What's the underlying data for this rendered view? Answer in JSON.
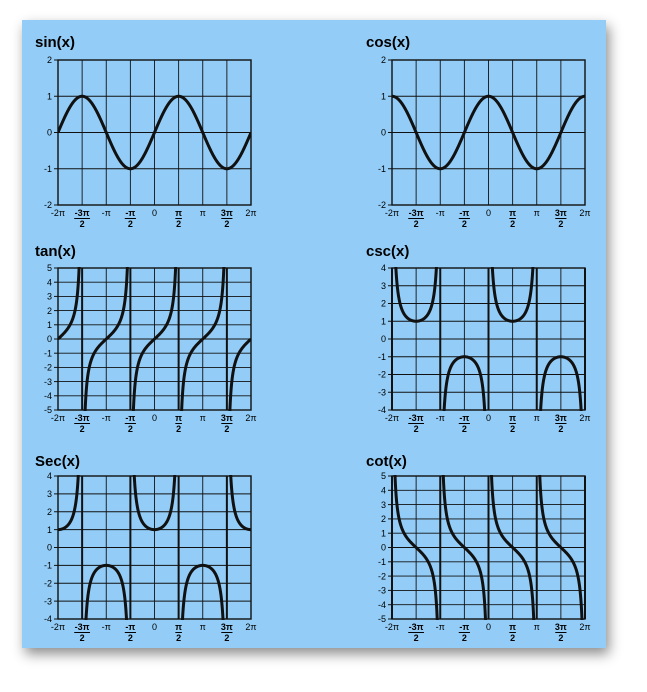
{
  "chart_data": [
    {
      "type": "line",
      "title": "sin(x)",
      "fn": "sin",
      "ylim": [
        -2,
        2
      ],
      "yticks": [
        "2",
        "1",
        "0",
        "-1",
        "-2"
      ],
      "ystep": 1,
      "xlim": [
        "-2π",
        "2π"
      ],
      "xticks": [
        "-2π",
        "-3π/2",
        "-π",
        "-π/2",
        "0",
        "π/2",
        "π",
        "3π/2",
        "2π"
      ],
      "series": [
        {
          "values": "y = sin(x), x ∈ [-2π, 2π]"
        }
      ],
      "grid": true,
      "color": "#111111"
    },
    {
      "type": "line",
      "title": "cos(x)",
      "fn": "cos",
      "ylim": [
        -2,
        2
      ],
      "yticks": [
        "2",
        "1",
        "0",
        "-1",
        "-2"
      ],
      "ystep": 1,
      "xlim": [
        "-2π",
        "2π"
      ],
      "xticks": [
        "-2π",
        "-3π/2",
        "-π",
        "-π/2",
        "0",
        "π/2",
        "π",
        "3π/2",
        "2π"
      ],
      "series": [
        {
          "values": "y = cos(x), x ∈ [-2π, 2π]"
        }
      ],
      "grid": true,
      "color": "#111111"
    },
    {
      "type": "line",
      "title": "tan(x)",
      "fn": "tan",
      "ylim": [
        -5,
        5
      ],
      "yticks": [
        "5",
        "4",
        "3",
        "2",
        "1",
        "0",
        "-1",
        "-2",
        "-3",
        "-4",
        "-5"
      ],
      "ystep": 1,
      "xlim": [
        "-2π",
        "2π"
      ],
      "xticks": [
        "-2π",
        "-3π/2",
        "-π",
        "-π/2",
        "0",
        "π/2",
        "π",
        "3π/2",
        "2π"
      ],
      "series": [
        {
          "values": "y = tan(x), x ∈ [-2π, 2π]"
        }
      ],
      "asymptotes": [
        "-3π/2",
        "-π/2",
        "π/2",
        "3π/2"
      ],
      "grid": true,
      "color": "#111111"
    },
    {
      "type": "line",
      "title": "csc(x)",
      "fn": "csc",
      "ylim": [
        -4,
        4
      ],
      "yticks": [
        "4",
        "3",
        "2",
        "1",
        "0",
        "-1",
        "-2",
        "-3",
        "-4"
      ],
      "ystep": 1,
      "xlim": [
        "-2π",
        "2π"
      ],
      "xticks": [
        "-2π",
        "-3π/2",
        "-π",
        "-π/2",
        "0",
        "π/2",
        "π",
        "3π/2",
        "2π"
      ],
      "series": [
        {
          "values": "y = csc(x), x ∈ [-2π, 2π]"
        }
      ],
      "asymptotes": [
        "-2π",
        "-π",
        "0",
        "π",
        "2π"
      ],
      "grid": true,
      "color": "#111111"
    },
    {
      "type": "line",
      "title": "Sec(x)",
      "fn": "sec",
      "ylim": [
        -4,
        4
      ],
      "yticks": [
        "4",
        "3",
        "2",
        "1",
        "0",
        "-1",
        "-2",
        "-3",
        "-4"
      ],
      "ystep": 1,
      "xlim": [
        "-2π",
        "2π"
      ],
      "xticks": [
        "-2π",
        "-3π/2",
        "-π",
        "-π/2",
        "0",
        "π/2",
        "π",
        "3π/2",
        "2π"
      ],
      "series": [
        {
          "values": "y = sec(x), x ∈ [-2π, 2π]"
        }
      ],
      "asymptotes": [
        "-3π/2",
        "-π/2",
        "π/2",
        "3π/2"
      ],
      "grid": true,
      "color": "#111111"
    },
    {
      "type": "line",
      "title": "cot(x)",
      "fn": "cot",
      "ylim": [
        -5,
        5
      ],
      "yticks": [
        "5",
        "4",
        "3",
        "2",
        "1",
        "0",
        "-1",
        "-2",
        "-3",
        "-4",
        "-5"
      ],
      "ystep": 1,
      "xlim": [
        "-2π",
        "2π"
      ],
      "xticks": [
        "-2π",
        "-3π/2",
        "-π",
        "-π/2",
        "0",
        "π/2",
        "π",
        "3π/2",
        "2π"
      ],
      "series": [
        {
          "values": "y = cot(x), x ∈ [-2π, 2π]"
        }
      ],
      "asymptotes": [
        "-2π",
        "-π",
        "0",
        "π",
        "2π"
      ],
      "grid": true,
      "color": "#111111"
    }
  ],
  "colors": {
    "background": "#93cdf7",
    "grid": "#111111",
    "curve": "#111111"
  }
}
